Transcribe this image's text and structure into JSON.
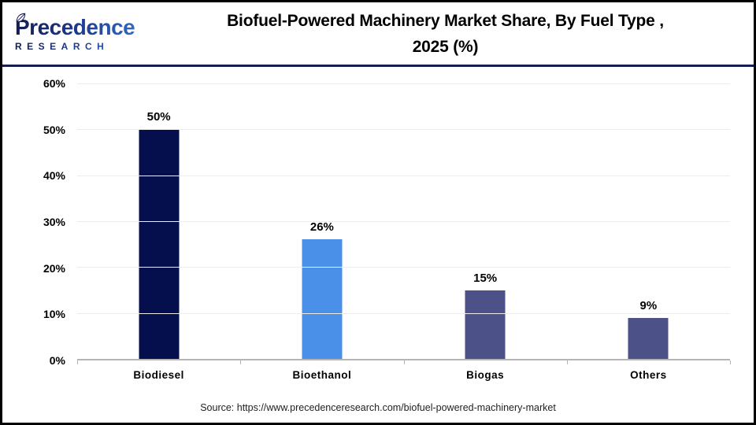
{
  "logo": {
    "name": "Precedence",
    "subtitle": "RESEARCH"
  },
  "title": {
    "line1": "Biofuel-Powered Machinery Market Share, By Fuel Type ,",
    "line2": "2025 (%)"
  },
  "source": "Source: https://www.precedenceresearch.com/biofuel-powered-machinery-market",
  "colors": {
    "header_rule": "#16204e",
    "gridline": "#ededed",
    "axis_line": "#b5b5b5",
    "logo_navy": "#131c52",
    "logo_blue": "#3878d8"
  },
  "chart_data": {
    "type": "bar",
    "title": "Biofuel-Powered Machinery Market Share, By Fuel Type , 2025 (%)",
    "categories": [
      "Biodiesel",
      "Bioethanol",
      "Biogas",
      "Others"
    ],
    "values": [
      50,
      26,
      15,
      9
    ],
    "data_labels": [
      "50%",
      "26%",
      "15%",
      "9%"
    ],
    "bar_colors": [
      "#050f4e",
      "#4a90e8",
      "#4c5187",
      "#4c5187"
    ],
    "xlabel": "",
    "ylabel": "",
    "ylim": [
      0,
      60
    ],
    "ytick_step": 10,
    "ytick_labels": [
      "0%",
      "10%",
      "20%",
      "30%",
      "40%",
      "50%",
      "60%"
    ],
    "grid": true,
    "legend": false
  }
}
